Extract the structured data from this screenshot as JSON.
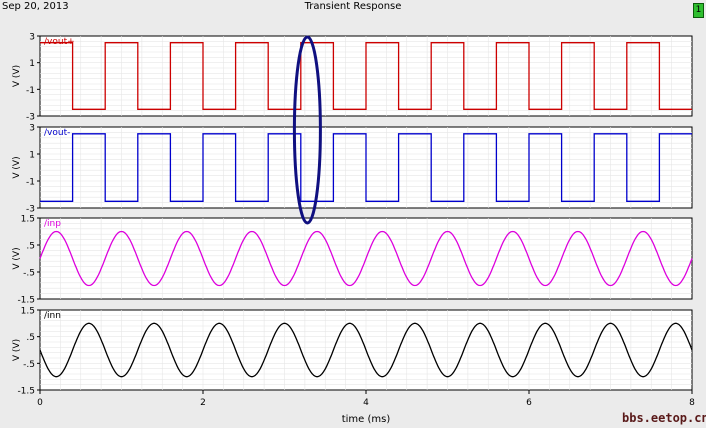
{
  "header": {
    "date": "Sep 20, 2013",
    "title": "Transient Response",
    "badge": "1"
  },
  "watermark": "bbs.eetop.cn",
  "chart_data": [
    {
      "type": "line",
      "name": "/vout+",
      "ylabel": "V (V)",
      "color": "#cc0000",
      "ylim": [
        -3,
        3
      ],
      "yticks": [
        "3",
        "1",
        "-1",
        "-3"
      ],
      "waveform": "square",
      "amplitude": 2.5,
      "frequency_khz": 1.25,
      "starts_high": true,
      "edges_ms": [
        0.0,
        0.4,
        0.8,
        1.2,
        1.6,
        2.0,
        2.4,
        2.8,
        3.2,
        3.6,
        4.0,
        4.4,
        4.8,
        5.2,
        5.6,
        6.0,
        6.4,
        6.8,
        7.2,
        7.6,
        8.0
      ]
    },
    {
      "type": "line",
      "name": "/vout-",
      "ylabel": "V (V)",
      "color": "#0000cc",
      "ylim": [
        -3,
        3
      ],
      "yticks": [
        "3",
        "1",
        "-1",
        "-3"
      ],
      "waveform": "square",
      "amplitude": 2.5,
      "frequency_khz": 1.25,
      "starts_high": false
    },
    {
      "type": "line",
      "name": "/inp",
      "ylabel": "V (V)",
      "color": "#dd00dd",
      "ylim": [
        -1.5,
        1.5
      ],
      "yticks": [
        "1.5",
        ".5",
        "-.5",
        "-1.5"
      ],
      "waveform": "sine",
      "amplitude": 1,
      "frequency_khz": 1.25,
      "phase": "starts at 0, rising"
    },
    {
      "type": "line",
      "name": "/inn",
      "ylabel": "V (V)",
      "color": "#000000",
      "ylim": [
        -1.5,
        1.5
      ],
      "yticks": [
        "1.5",
        ".5",
        "-.5",
        "-1.5"
      ],
      "waveform": "sine",
      "amplitude": 1,
      "frequency_khz": 1.25,
      "phase": "starts at 0, falling"
    }
  ],
  "x_axis": {
    "label": "time (ms)",
    "xlim": [
      0,
      8
    ],
    "ticks": [
      "0",
      "2",
      "4",
      "6",
      "8"
    ]
  },
  "annotation": {
    "shape": "ellipse",
    "color": "#101080",
    "at_time_ms": 3.6
  }
}
